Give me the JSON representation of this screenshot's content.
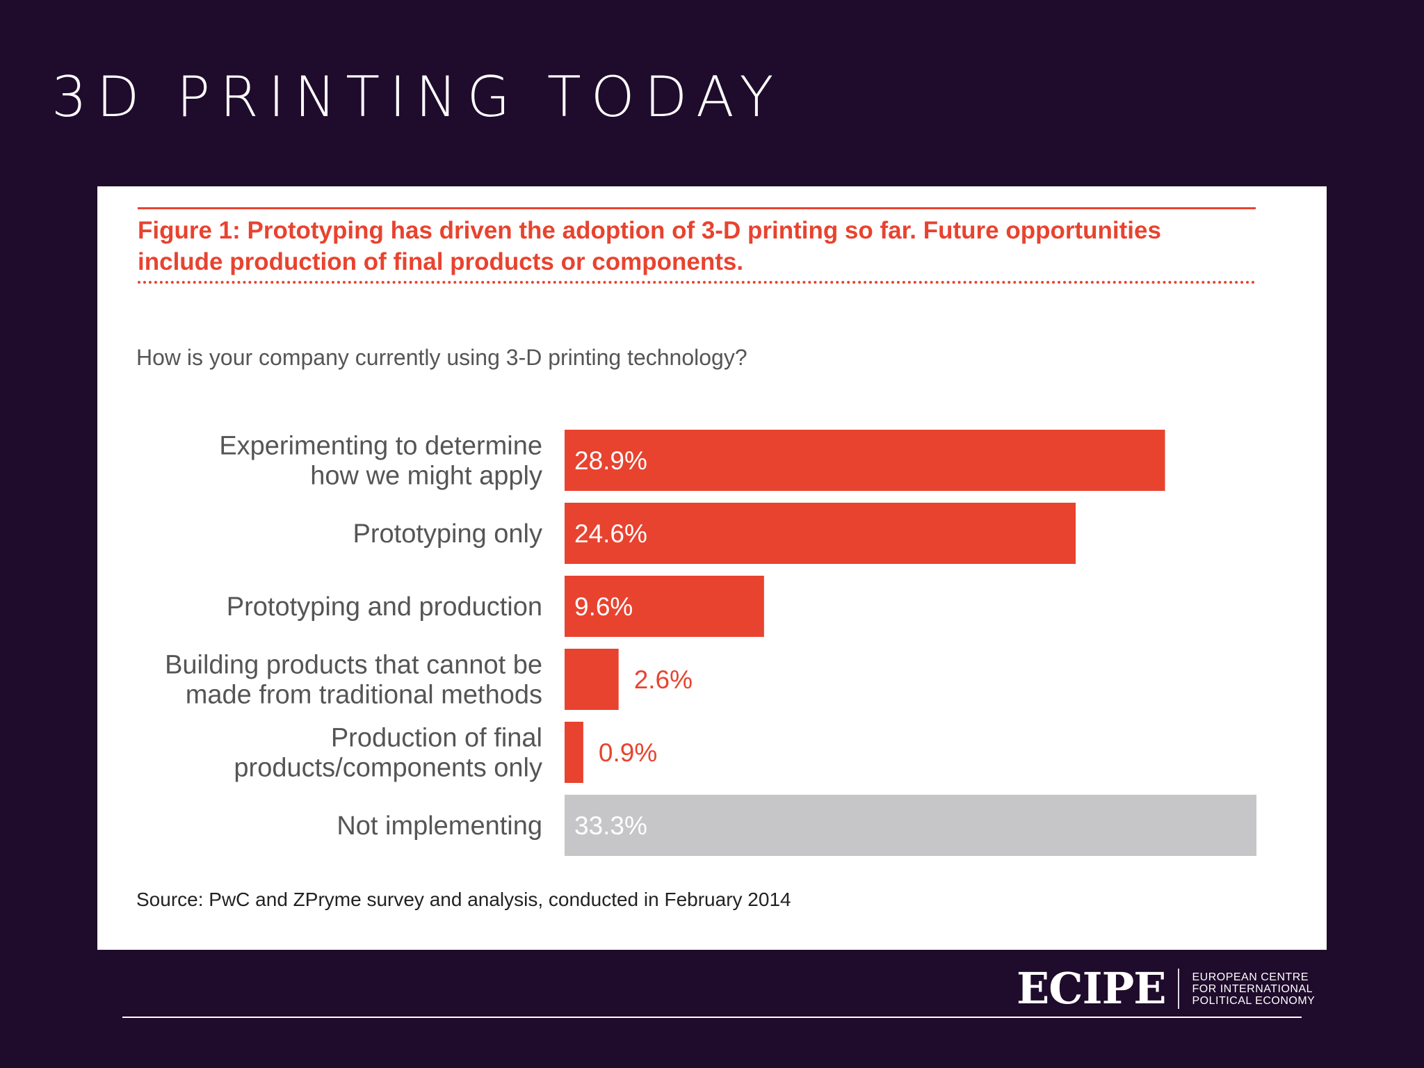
{
  "slide": {
    "title": "3D PRINTING TODAY"
  },
  "figure": {
    "caption_line1": "Figure 1: Prototyping has driven the adoption of 3-D printing so far. Future opportunities",
    "caption_line2": "include production of final products or components.",
    "question": "How is your company currently using 3-D printing technology?",
    "source": "Source: PwC and ZPryme survey and analysis, conducted in February 2014"
  },
  "colors": {
    "accent": "#e8432f",
    "neutral_bar": "#c6c5c8",
    "background": "#1f0b2b"
  },
  "chart_data": {
    "type": "bar",
    "orientation": "horizontal",
    "title": "",
    "xlabel": "",
    "ylabel": "",
    "grid": false,
    "categories": [
      [
        "Experimenting to determine",
        "how we might apply"
      ],
      [
        "Prototyping only"
      ],
      [
        "Prototyping and production"
      ],
      [
        "Building products that cannot be",
        "made from traditional methods"
      ],
      [
        "Production of final",
        "products/components only"
      ],
      [
        "Not implementing"
      ]
    ],
    "values": [
      28.9,
      24.6,
      9.6,
      2.6,
      0.9,
      33.3
    ],
    "value_labels": [
      "28.9%",
      "24.6%",
      "9.6%",
      "2.6%",
      "0.9%",
      "33.3%"
    ],
    "bar_colors": [
      "#e8432f",
      "#e8432f",
      "#e8432f",
      "#e8432f",
      "#e8432f",
      "#c6c5c8"
    ]
  },
  "footer": {
    "logo_mark": "ECIPE",
    "logo_lines": [
      "EUROPEAN CENTRE",
      "FOR INTERNATIONAL",
      "POLITICAL ECONOMY"
    ]
  }
}
